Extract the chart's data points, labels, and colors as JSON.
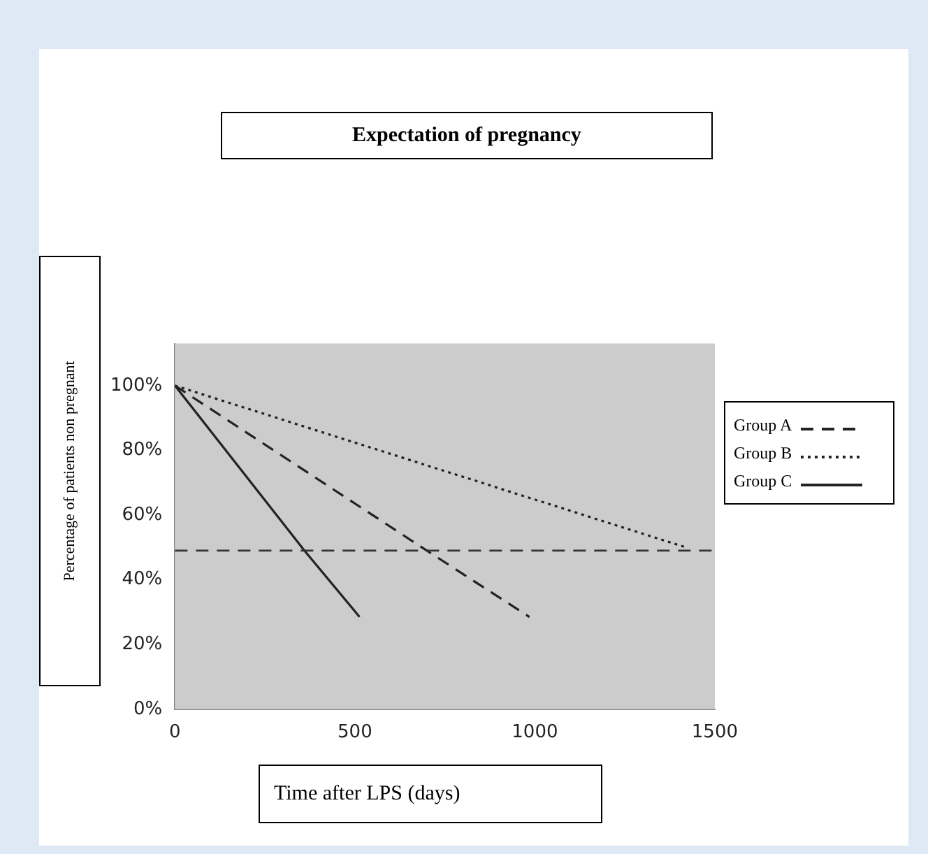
{
  "chart_data": {
    "type": "line",
    "title": "Expectation of pregnancy",
    "xlabel": "Time after LPS (days)",
    "ylabel": "Percentage of patients non pregnant",
    "series": [
      {
        "name": "Group A",
        "color": "#222222",
        "line_style": "dashed",
        "x": [
          0,
          700,
          985
        ],
        "values": [
          100,
          49,
          28.5
        ]
      },
      {
        "name": "Group B",
        "color": "#222222",
        "line_style": "dotted",
        "x": [
          0,
          1420
        ],
        "values": [
          100,
          50
        ]
      },
      {
        "name": "Group C",
        "color": "#222222",
        "line_style": "solid",
        "x": [
          0,
          360,
          513
        ],
        "values": [
          100,
          49,
          28.5
        ]
      }
    ],
    "xlim": [
      0,
      1500
    ],
    "xticks": [
      0,
      500,
      1000,
      1500
    ],
    "ylim": [
      0,
      113
    ],
    "yticks": [
      {
        "value": 0,
        "label": "0%"
      },
      {
        "value": 20,
        "label": "20%"
      },
      {
        "value": 40,
        "label": "40%"
      },
      {
        "value": 60,
        "label": "60%"
      },
      {
        "value": 80,
        "label": "80%"
      },
      {
        "value": 100,
        "label": "100%"
      }
    ],
    "ref_lines": [
      {
        "axis": "y",
        "value": 49,
        "color": "#333333",
        "line_style": "dashed"
      }
    ],
    "grid": false,
    "legend": "right",
    "marker": "none"
  }
}
